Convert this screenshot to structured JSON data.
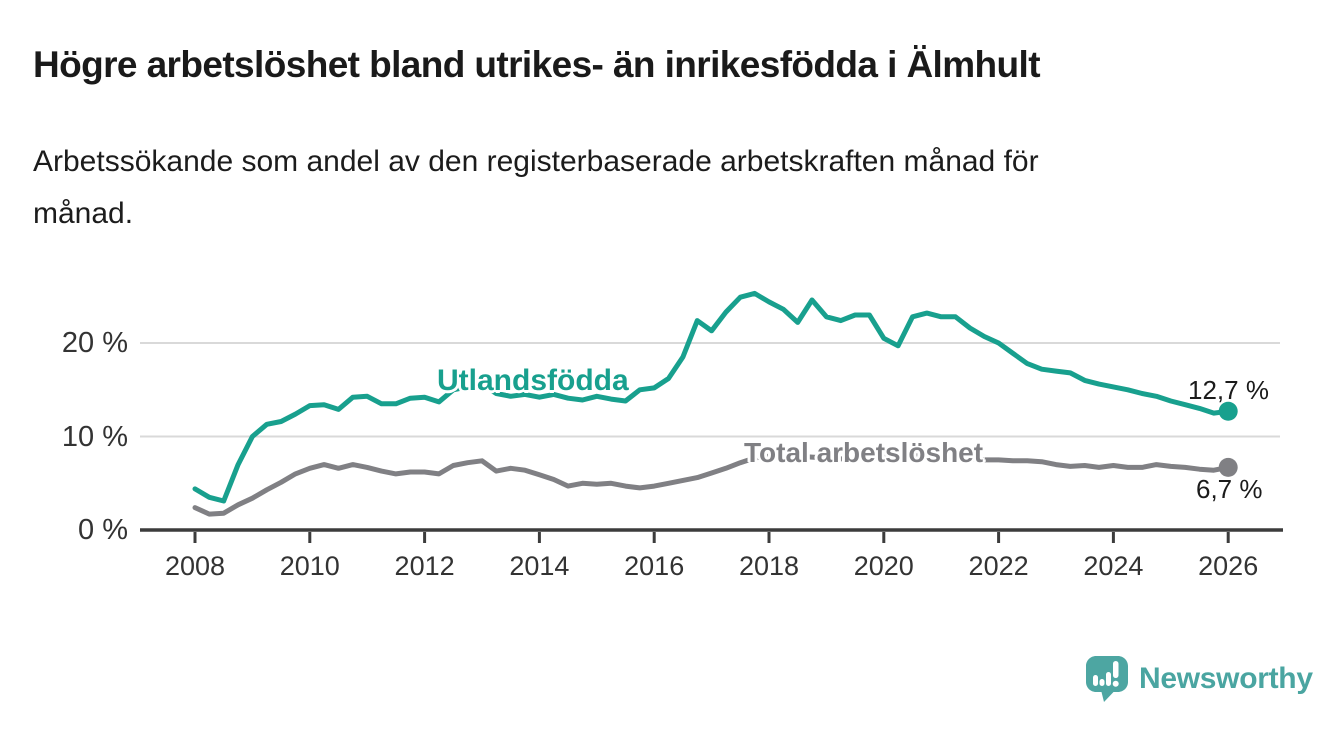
{
  "title": "Högre arbetslöshet bland utrikes- än inrikesfödda i Älmhult",
  "subtitle": "Arbetssökande som andel av den registerbaserade arbetskraften månad för månad.",
  "subtitle_lines": [
    "Arbetssökande som andel av den registerbaserade arbetskraften månad för",
    "månad."
  ],
  "branding": {
    "logo_text": "Newsworthy",
    "logo_icon": "newsworthy-speech-bubble-bar-chart-icon"
  },
  "colors": {
    "background": "#ffffff",
    "title": "#1a1a1a",
    "gridline": "#d9d9d9",
    "axis": "#3c3c3c",
    "tick_label": "#333333",
    "value_label": "#1b1b1b",
    "utlandsfodda_teal": "#18a08e",
    "total_gray": "#808084",
    "brand_teal": "#4aa5a1"
  },
  "chart_data": {
    "type": "line",
    "title": "Högre arbetslöshet bland utrikes- än inrikesfödda i Älmhult",
    "xlabel": "",
    "ylabel": "Arbetssökande som andel av den registerbaserade arbetskraften",
    "x_unit": "year (monthly data, sampled quarterly)",
    "y_unit": "percent",
    "xlim": [
      2007,
      2027
    ],
    "ylim": [
      0,
      26
    ],
    "x_ticks": [
      2008,
      2010,
      2012,
      2014,
      2016,
      2018,
      2020,
      2022,
      2024,
      2026
    ],
    "y_ticks": [
      0,
      10,
      20
    ],
    "y_tick_labels": [
      "0 %",
      "10 %",
      "20 %"
    ],
    "grid": "horizontal",
    "legend": "inline-labels-on-lines",
    "series": [
      {
        "name": "Utlandsfödda",
        "color": "#18a08e",
        "end_value": 12.7,
        "end_label": "12,7 %",
        "x_start": 2008.0,
        "x_step": 0.25,
        "values": [
          4.4,
          3.5,
          3.1,
          7.0,
          10.0,
          11.3,
          11.6,
          12.4,
          13.3,
          13.4,
          12.9,
          14.2,
          14.3,
          13.5,
          13.5,
          14.1,
          14.2,
          13.7,
          15.0,
          15.3,
          15.6,
          14.6,
          14.3,
          14.5,
          14.2,
          14.5,
          14.1,
          13.9,
          14.3,
          14.0,
          13.8,
          15.0,
          15.2,
          16.2,
          18.5,
          22.4,
          21.3,
          23.3,
          24.9,
          25.3,
          24.4,
          23.6,
          22.2,
          24.6,
          22.8,
          22.4,
          23.0,
          23.0,
          20.5,
          19.7,
          22.8,
          23.2,
          22.8,
          22.8,
          21.6,
          20.7,
          20.0,
          18.9,
          17.8,
          17.2,
          17.0,
          16.8,
          16.0,
          15.6,
          15.3,
          15.0,
          14.6,
          14.3,
          13.8,
          13.4,
          13.0,
          12.5,
          12.7
        ]
      },
      {
        "name": "Total arbetslöshet",
        "color": "#808084",
        "end_value": 6.7,
        "end_label": "6,7 %",
        "x_start": 2008.0,
        "x_step": 0.25,
        "values": [
          2.4,
          1.7,
          1.8,
          2.7,
          3.4,
          4.3,
          5.1,
          6.0,
          6.6,
          7.0,
          6.6,
          7.0,
          6.7,
          6.3,
          6.0,
          6.2,
          6.2,
          6.0,
          6.9,
          7.2,
          7.4,
          6.3,
          6.6,
          6.4,
          5.9,
          5.4,
          4.7,
          5.0,
          4.9,
          5.0,
          4.7,
          4.5,
          4.7,
          5.0,
          5.3,
          5.6,
          6.1,
          6.6,
          7.2,
          7.7,
          7.9,
          8.0,
          7.9,
          7.8,
          7.7,
          7.6,
          7.6,
          7.7,
          7.8,
          8.2,
          8.1,
          8.0,
          7.9,
          7.7,
          7.6,
          7.5,
          7.5,
          7.4,
          7.4,
          7.3,
          7.0,
          6.8,
          6.9,
          6.7,
          6.9,
          6.7,
          6.7,
          7.0,
          6.8,
          6.7,
          6.5,
          6.4,
          6.7
        ]
      }
    ]
  }
}
